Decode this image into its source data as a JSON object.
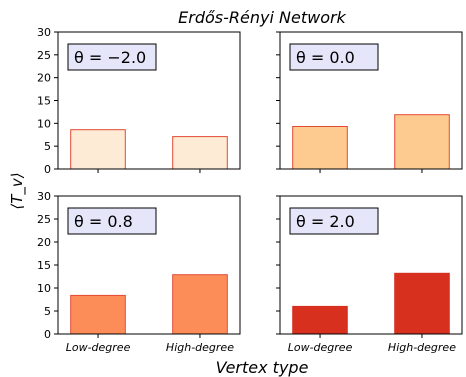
{
  "chart_data": {
    "type": "bar",
    "title": "Erdős-Rényi Network",
    "xlabel": "Vertex type",
    "ylabel": "⟨T_v⟩",
    "categories": [
      "Low-degree",
      "High-degree"
    ],
    "ylim": [
      0,
      30
    ],
    "yticks": [
      0,
      5,
      10,
      15,
      20,
      25,
      30
    ],
    "grid": false,
    "panels": [
      {
        "label": "θ = −2.0",
        "values": [
          8.6,
          7.1
        ],
        "fill": "#fdebd5",
        "edge": "#e34a33"
      },
      {
        "label": "θ = 0.0",
        "values": [
          9.3,
          11.9
        ],
        "fill": "#fdcb8f",
        "edge": "#e34a33"
      },
      {
        "label": "θ = 0.8",
        "values": [
          8.4,
          12.9
        ],
        "fill": "#fc8d59",
        "edge": "#e34a33"
      },
      {
        "label": "θ = 2.0",
        "values": [
          6.0,
          13.2
        ],
        "fill": "#d7301f",
        "edge": "#d7301f"
      }
    ],
    "label_box_color": "#e6e6fa"
  }
}
